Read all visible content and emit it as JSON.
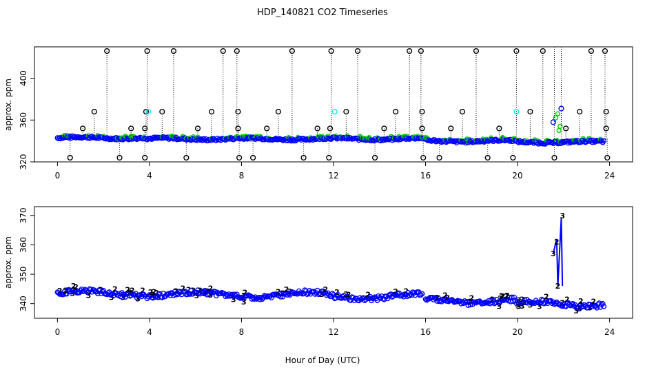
{
  "chart_data": {
    "type": "scatter",
    "title": "HDP_140821  CO2 Timeseries",
    "xlabel": "Hour of Day (UTC)",
    "x_ticks": [
      "0",
      "4",
      "8",
      "12",
      "16",
      "20",
      "24"
    ],
    "xlim": [
      -1,
      25
    ],
    "colors": {
      "series1": "#000000",
      "series2": "#00cd00",
      "series3": "#0000ff",
      "flag": "#00eeee"
    },
    "panels": [
      {
        "ylabel": "approx. ppm",
        "ylim": [
          320,
          430
        ],
        "y_ticks": [
          "320",
          "360",
          "400"
        ],
        "y_tick_values": [
          320,
          360,
          400
        ],
        "base_segments": [
          [
            0,
            3.8,
            343
          ],
          [
            3.9,
            8,
            342
          ],
          [
            8,
            11.8,
            342
          ],
          [
            11.8,
            15.9,
            342
          ],
          [
            16,
            19.9,
            340
          ],
          [
            19.9,
            23.8,
            339
          ]
        ],
        "spikes_high": [
          2.15,
          3.9,
          5.05,
          7.2,
          7.8,
          10.2,
          11.9,
          13.05,
          15.3,
          15.8,
          18.2,
          19.95,
          21.1,
          23.2,
          23.8
        ],
        "spikes_mid": [
          1.6,
          3.85,
          4.55,
          6.7,
          7.85,
          9.6,
          12.55,
          14.7,
          15.85,
          17.6,
          20.55,
          22.7,
          23.85
        ],
        "spikes_low": [
          1.1,
          3.2,
          3.8,
          6.1,
          7.85,
          9.1,
          11.3,
          11.85,
          14.2,
          15.85,
          17.1,
          19.2,
          22.1,
          23.85
        ],
        "spikes_bottom": [
          0.55,
          2.7,
          3.8,
          5.6,
          7.9,
          8.5,
          10.7,
          11.8,
          13.8,
          15.9,
          16.6,
          18.7,
          19.8,
          21.6,
          23.9
        ],
        "cyan_points": [
          [
            3.95,
            368
          ],
          [
            12.05,
            368
          ],
          [
            19.95,
            368
          ]
        ],
        "blue_peak": [
          [
            21.55,
            358
          ],
          [
            21.9,
            371
          ]
        ]
      },
      {
        "ylabel": "approx. ppm",
        "ylim": [
          335,
          373
        ],
        "y_ticks": [
          "340",
          "350",
          "360",
          "370"
        ],
        "y_tick_values": [
          340,
          350,
          360,
          370
        ],
        "segments": [
          [
            0,
            3.8,
            343.5
          ],
          [
            3.9,
            8,
            343
          ],
          [
            8,
            11.8,
            343
          ],
          [
            11.8,
            15.9,
            342.5
          ],
          [
            16,
            19.9,
            341
          ],
          [
            19.9,
            23.8,
            340
          ]
        ],
        "peak_points": [
          [
            21.55,
            357
          ],
          [
            21.7,
            362
          ],
          [
            21.9,
            369
          ],
          [
            21.75,
            346
          ],
          [
            21.95,
            346
          ]
        ]
      }
    ]
  }
}
